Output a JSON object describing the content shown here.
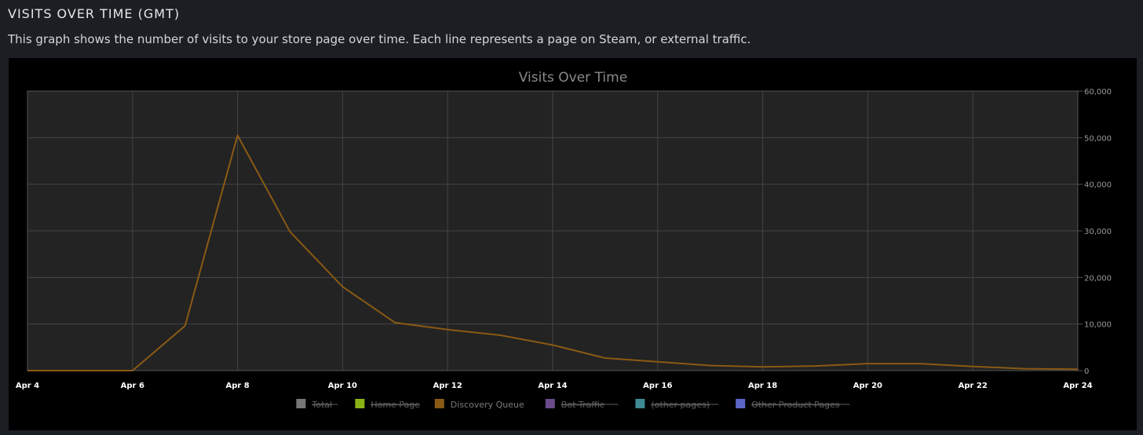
{
  "header": {
    "title": "VISITS OVER TIME (GMT)",
    "description": "This graph shows the number of visits to your store page over time. Each line represents a page on Steam, or external traffic."
  },
  "chart_data": {
    "type": "line",
    "title": "Visits Over Time",
    "xlabel": "",
    "ylabel": "",
    "x": [
      "Apr 4",
      "Apr 5",
      "Apr 6",
      "Apr 7",
      "Apr 8",
      "Apr 9",
      "Apr 10",
      "Apr 11",
      "Apr 12",
      "Apr 13",
      "Apr 14",
      "Apr 15",
      "Apr 16",
      "Apr 17",
      "Apr 18",
      "Apr 19",
      "Apr 20",
      "Apr 21",
      "Apr 22",
      "Apr 23",
      "Apr 24"
    ],
    "x_tick_labels": [
      "Apr 4",
      "Apr 6",
      "Apr 8",
      "Apr 10",
      "Apr 12",
      "Apr 14",
      "Apr 16",
      "Apr 18",
      "Apr 20",
      "Apr 22",
      "Apr 24"
    ],
    "y_tick_labels": [
      "0",
      "10,000",
      "20,000",
      "30,000",
      "40,000",
      "50,000",
      "60,000"
    ],
    "ylim": [
      0,
      60000
    ],
    "grid": true,
    "y_axis_side": "right",
    "legend_position": "bottom-center",
    "series": [
      {
        "name": "Discovery Queue",
        "color": "#8a5a14",
        "visible": true,
        "values": [
          0,
          0,
          0,
          9600,
          50500,
          29800,
          18000,
          10300,
          8800,
          7600,
          5500,
          2700,
          1900,
          1100,
          800,
          1000,
          1500,
          1500,
          900,
          400,
          300
        ]
      }
    ],
    "legend": [
      {
        "label": "Total",
        "color": "#777777",
        "active": false
      },
      {
        "label": "Home Page",
        "color": "#8cb315",
        "active": false
      },
      {
        "label": "Discovery Queue",
        "color": "#8a5a14",
        "active": true
      },
      {
        "label": "Bot Traffic",
        "color": "#6a4a8a",
        "active": false
      },
      {
        "label": "(other pages)",
        "color": "#3d8a95",
        "active": false
      },
      {
        "label": "Other Product Pages",
        "color": "#5b66c8",
        "active": false
      }
    ]
  }
}
